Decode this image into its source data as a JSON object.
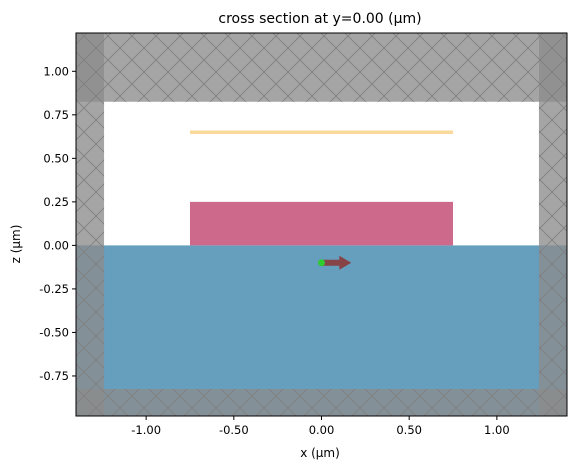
{
  "chart_data": {
    "type": "cross_section",
    "title": "cross section at y=0.00 (µm)",
    "xlabel": "x (µm)",
    "ylabel": "z (µm)",
    "xlim": [
      -1.4,
      1.4
    ],
    "ylim": [
      -0.98,
      1.22
    ],
    "xticks": [
      {
        "value": -1.0,
        "label": "-1.00"
      },
      {
        "value": -0.5,
        "label": "-0.50"
      },
      {
        "value": 0.0,
        "label": "0.00"
      },
      {
        "value": 0.5,
        "label": "0.50"
      },
      {
        "value": 1.0,
        "label": "1.00"
      }
    ],
    "yticks": [
      {
        "value": 1.0,
        "label": "1.00"
      },
      {
        "value": 0.75,
        "label": "0.75"
      },
      {
        "value": 0.5,
        "label": "0.50"
      },
      {
        "value": 0.25,
        "label": "0.25"
      },
      {
        "value": 0.0,
        "label": "0.00"
      },
      {
        "value": -0.25,
        "label": "-0.25"
      },
      {
        "value": -0.5,
        "label": "-0.50"
      },
      {
        "value": -0.75,
        "label": "-0.75"
      }
    ],
    "structures": [
      {
        "name": "substrate",
        "x": [
          -1.4,
          1.4
        ],
        "z": [
          -0.98,
          0.0
        ],
        "color": "#669ebd"
      },
      {
        "name": "waveguide",
        "x": [
          -0.75,
          0.75
        ],
        "z": [
          0.0,
          0.25
        ],
        "color": "#cd6a8c"
      },
      {
        "name": "monitor",
        "x": [
          -0.75,
          0.75
        ],
        "z": [
          0.64,
          0.66
        ],
        "color": "#fad99a"
      }
    ],
    "pml_regions": [
      {
        "name": "pml-top",
        "x": [
          -1.4,
          1.4
        ],
        "z": [
          0.825,
          1.22
        ]
      },
      {
        "name": "pml-bottom",
        "x": [
          -1.4,
          1.4
        ],
        "z": [
          -0.98,
          -0.825
        ]
      },
      {
        "name": "pml-left",
        "x": [
          -1.4,
          -1.24
        ],
        "z": [
          -0.98,
          1.22
        ]
      },
      {
        "name": "pml-right",
        "x": [
          1.24,
          1.4
        ],
        "z": [
          -0.98,
          1.22
        ]
      }
    ],
    "source": {
      "x": 0.0,
      "z": -0.1,
      "color": "#2ecc2e"
    },
    "arrow": {
      "x_start": 0.0,
      "x_end": 0.17,
      "z": -0.1,
      "color": "#8b3a3a"
    },
    "grid": false
  }
}
